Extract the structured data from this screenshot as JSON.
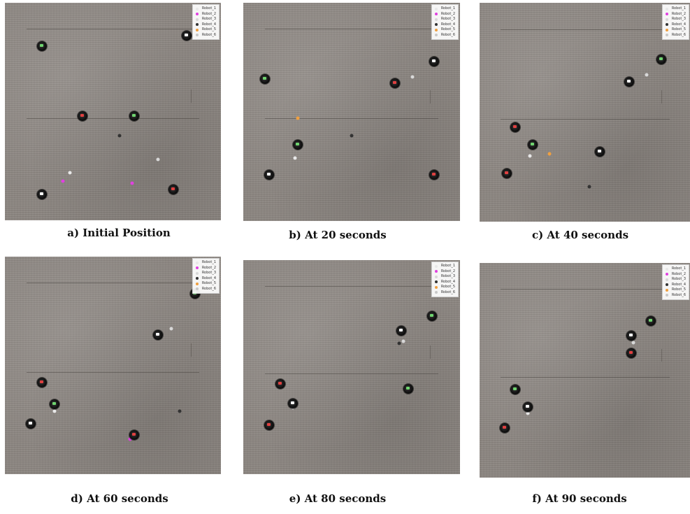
{
  "legend": {
    "labels": [
      "Robot_1",
      "Robot_2",
      "Robot_3",
      "Robot_4",
      "Robot_5",
      "Robot_6"
    ],
    "colors": [
      "#e8e8e8",
      "#e040e0",
      "#d8d8d8",
      "#333333",
      "#f0a040",
      "#c8c8c8"
    ]
  },
  "panels": [
    {
      "caption": "a) Initial Position",
      "robots": [
        [
          0.17,
          0.2
        ],
        [
          0.84,
          0.15
        ],
        [
          0.36,
          0.52
        ],
        [
          0.6,
          0.52
        ],
        [
          0.17,
          0.88
        ],
        [
          0.78,
          0.86
        ]
      ],
      "markers": [
        [
          0.53,
          0.61,
          4
        ],
        [
          0.71,
          0.72,
          3
        ],
        [
          0.3,
          0.78,
          1
        ],
        [
          0.27,
          0.82,
          2
        ],
        [
          0.59,
          0.83,
          2
        ]
      ]
    },
    {
      "caption": "b) At 20 seconds",
      "robots": [
        [
          0.1,
          0.35
        ],
        [
          0.88,
          0.27
        ],
        [
          0.7,
          0.37
        ],
        [
          0.25,
          0.65
        ],
        [
          0.12,
          0.79
        ],
        [
          0.88,
          0.79
        ]
      ],
      "markers": [
        [
          0.78,
          0.34,
          3
        ],
        [
          0.25,
          0.53,
          5
        ],
        [
          0.5,
          0.61,
          4
        ],
        [
          0.24,
          0.71,
          1
        ]
      ]
    },
    {
      "caption": "c) At 40 seconds",
      "robots": [
        [
          0.86,
          0.26
        ],
        [
          0.71,
          0.36
        ],
        [
          0.17,
          0.57
        ],
        [
          0.25,
          0.65
        ],
        [
          0.57,
          0.68
        ],
        [
          0.13,
          0.78
        ]
      ],
      "markers": [
        [
          0.79,
          0.33,
          3
        ],
        [
          0.33,
          0.69,
          5
        ],
        [
          0.24,
          0.7,
          1
        ],
        [
          0.52,
          0.84,
          4
        ]
      ]
    },
    {
      "caption": "d) At 60 seconds",
      "robots": [
        [
          0.88,
          0.17
        ],
        [
          0.71,
          0.36
        ],
        [
          0.17,
          0.58
        ],
        [
          0.23,
          0.68
        ],
        [
          0.12,
          0.77
        ],
        [
          0.6,
          0.82
        ]
      ],
      "markers": [
        [
          0.77,
          0.33,
          3
        ],
        [
          0.23,
          0.71,
          1
        ],
        [
          0.81,
          0.71,
          4
        ],
        [
          0.58,
          0.84,
          2
        ]
      ]
    },
    {
      "caption": "e) At 80 seconds",
      "robots": [
        [
          0.87,
          0.26
        ],
        [
          0.73,
          0.33
        ],
        [
          0.17,
          0.58
        ],
        [
          0.76,
          0.6
        ],
        [
          0.23,
          0.67
        ],
        [
          0.12,
          0.77
        ]
      ],
      "markers": [
        [
          0.74,
          0.38,
          3
        ],
        [
          0.72,
          0.39,
          4
        ],
        [
          0.23,
          0.69,
          1
        ]
      ]
    },
    {
      "caption": "f) At 90 seconds",
      "robots": [
        [
          0.81,
          0.27
        ],
        [
          0.72,
          0.34
        ],
        [
          0.72,
          0.42
        ],
        [
          0.17,
          0.59
        ],
        [
          0.23,
          0.67
        ],
        [
          0.12,
          0.77
        ]
      ],
      "markers": [
        [
          0.73,
          0.37,
          3
        ],
        [
          0.23,
          0.7,
          1
        ]
      ]
    }
  ]
}
